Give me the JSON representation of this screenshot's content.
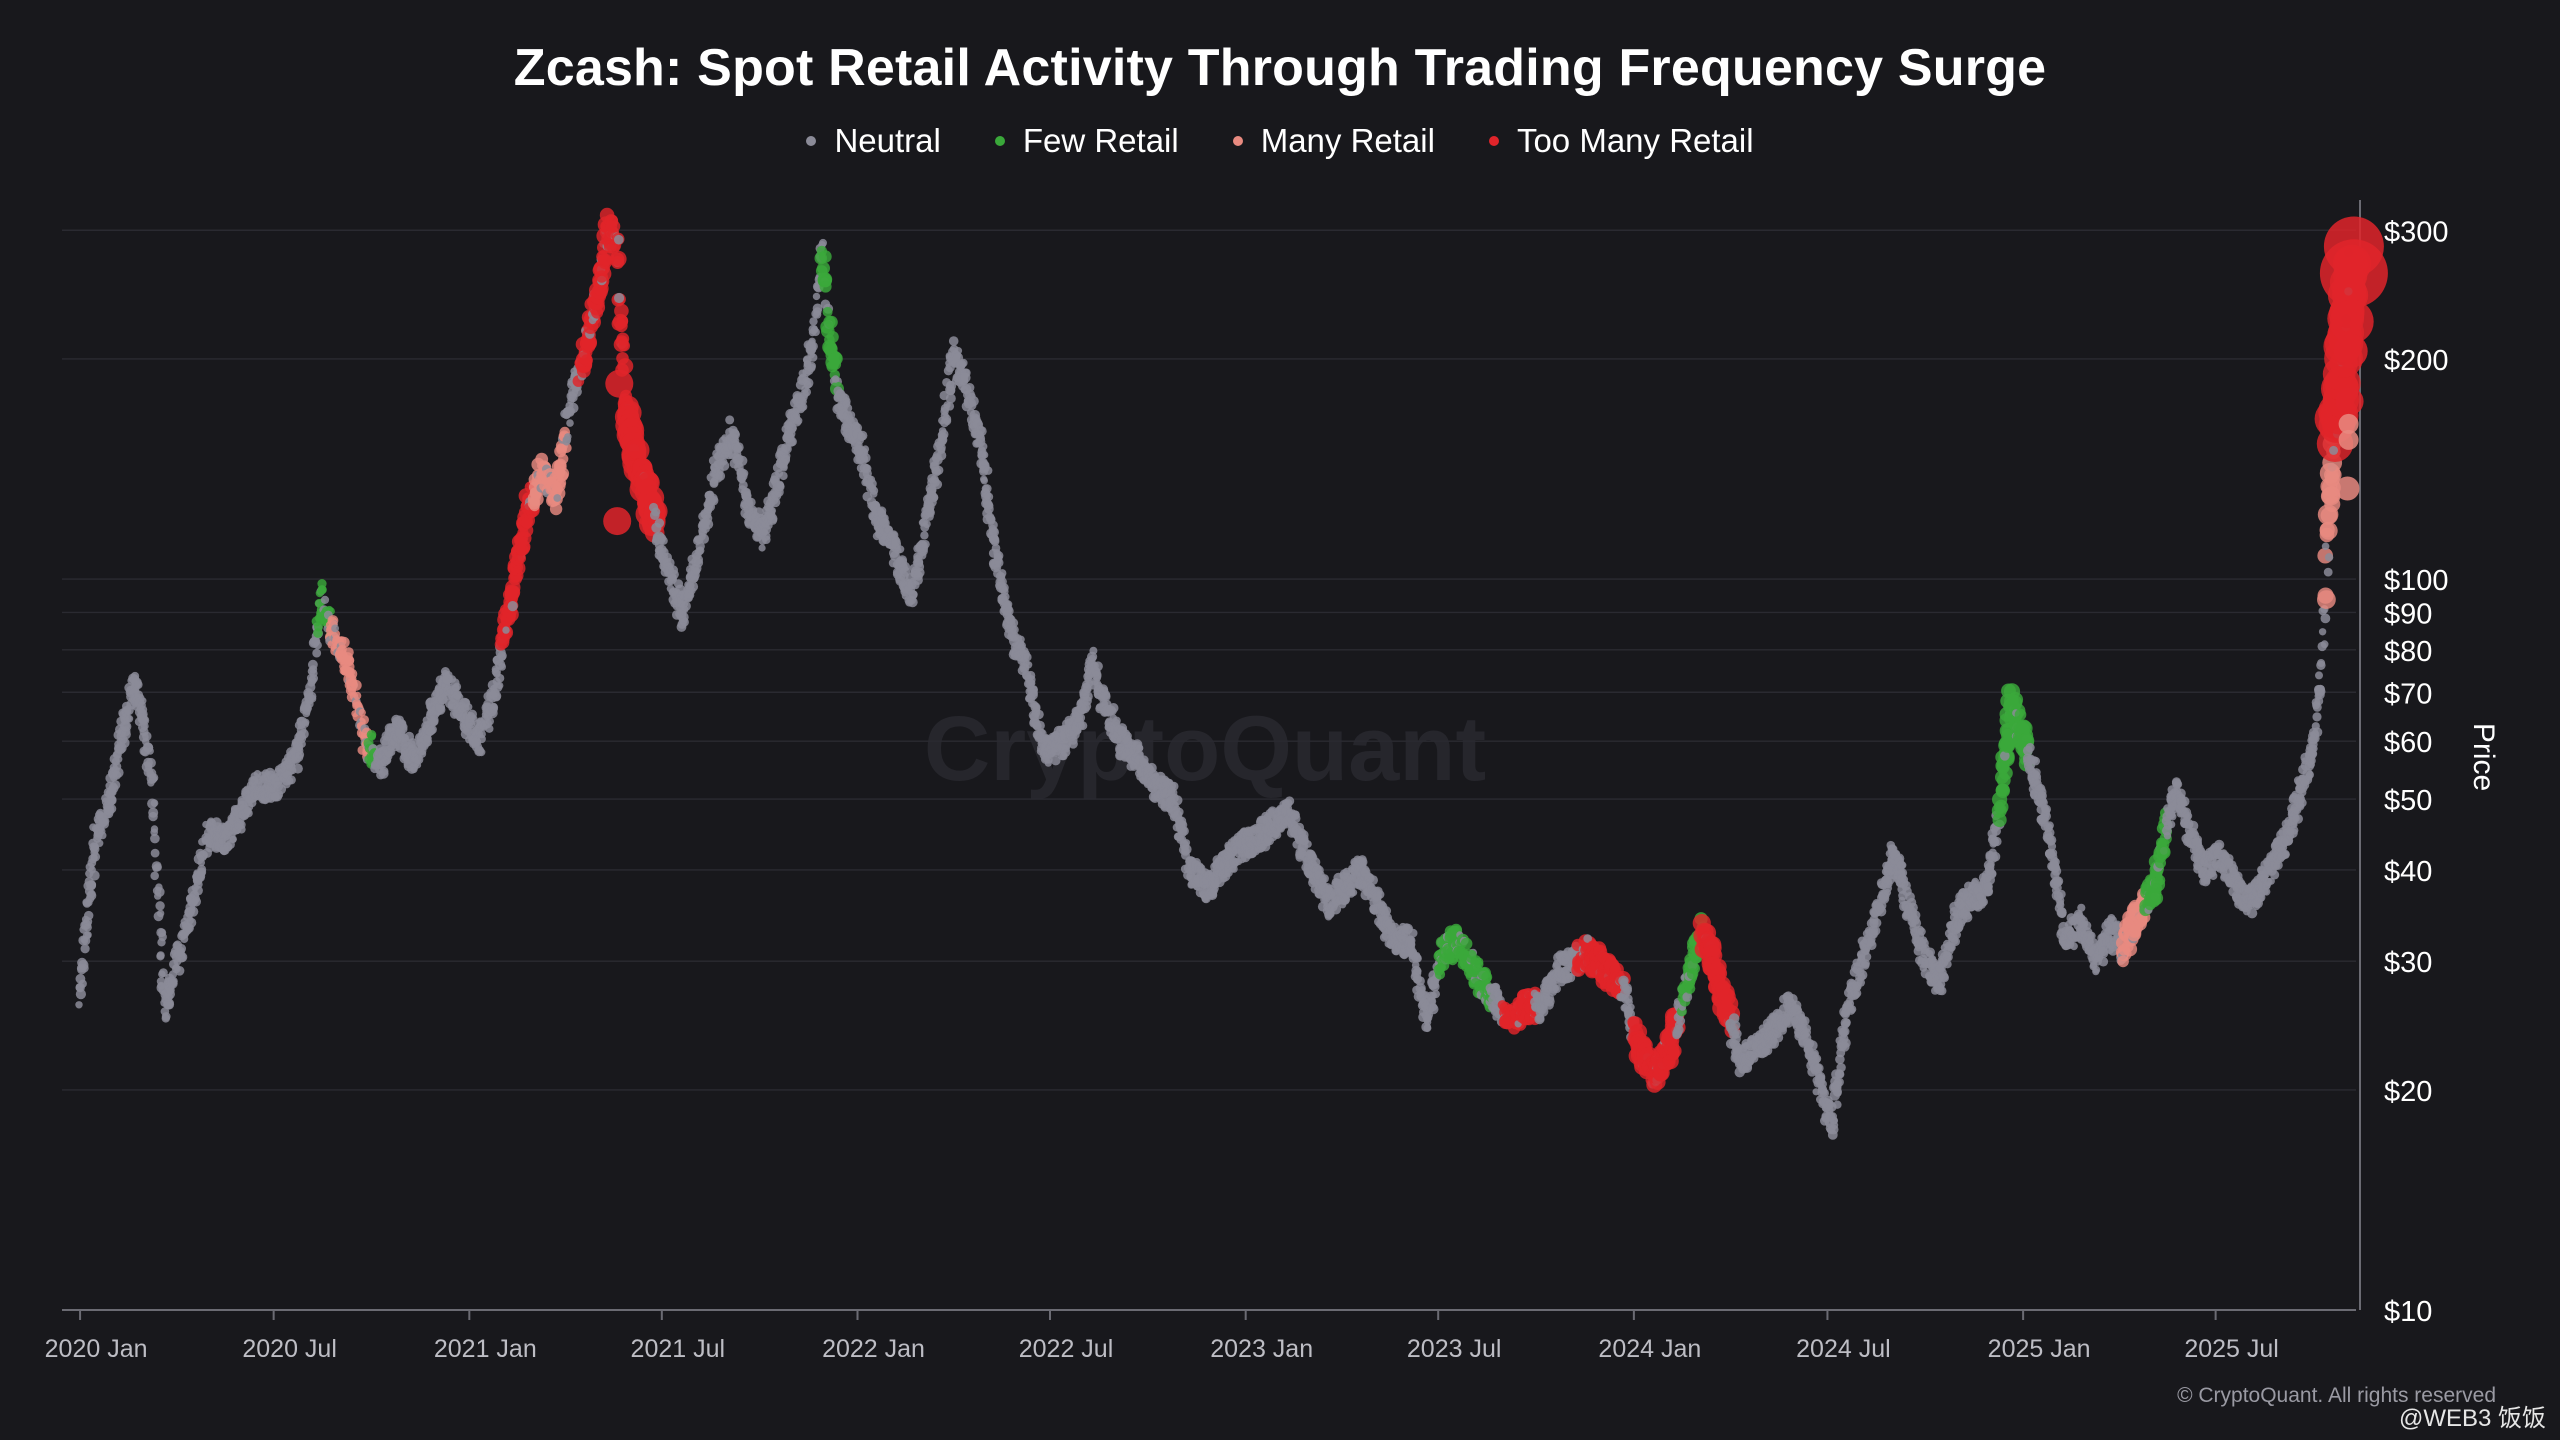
{
  "colors": {
    "background": "#18181c",
    "grid": "#2a2a31",
    "axis": "#6b6b73",
    "neutral": "#8b8b98",
    "few_retail": "#3aa83a",
    "many_retail": "#e88a80",
    "too_many_retail": "#e0242a"
  },
  "watermark": "CryptoQuant",
  "copyright": "© CryptoQuant. All rights reserved",
  "social_tag": "@WEB3 饭饭",
  "chart_data": {
    "type": "scatter",
    "title": "Zcash: Spot Retail Activity Through Trading Frequency Surge",
    "ylabel": "Price",
    "xlabel": "",
    "y_scale": "log",
    "ylim": [
      10,
      330
    ],
    "xlim": [
      "2019-12-15",
      "2025-11-10"
    ],
    "grid": true,
    "legend_position": "top-center",
    "x_ticks": [
      "2020 Jan",
      "2020 Jul",
      "2021 Jan",
      "2021 Jul",
      "2022 Jan",
      "2022 Jul",
      "2023 Jan",
      "2023 Jul",
      "2024 Jan",
      "2024 Jul",
      "2025 Jan",
      "2025 Jul"
    ],
    "x_tick_dates": [
      "2020-01-01",
      "2020-07-01",
      "2021-01-01",
      "2021-07-01",
      "2022-01-01",
      "2022-07-01",
      "2023-01-01",
      "2023-07-01",
      "2024-01-01",
      "2024-07-01",
      "2025-01-01",
      "2025-07-01"
    ],
    "y_ticks": [
      {
        "value": 10,
        "label": "$10"
      },
      {
        "value": 20,
        "label": "$20"
      },
      {
        "value": 30,
        "label": "$30"
      },
      {
        "value": 40,
        "label": "$40"
      },
      {
        "value": 50,
        "label": "$50"
      },
      {
        "value": 60,
        "label": "$60"
      },
      {
        "value": 70,
        "label": "$70"
      },
      {
        "value": 80,
        "label": "$80"
      },
      {
        "value": 90,
        "label": "$90"
      },
      {
        "value": 100,
        "label": "$100"
      },
      {
        "value": 200,
        "label": "$200"
      },
      {
        "value": 300,
        "label": "$300"
      }
    ],
    "legend": [
      {
        "key": "neutral",
        "label": "Neutral"
      },
      {
        "key": "few_retail",
        "label": "Few Retail"
      },
      {
        "key": "many_retail",
        "label": "Many Retail"
      },
      {
        "key": "too_many_retail",
        "label": "Too Many Retail"
      }
    ],
    "price_path": [
      [
        "2020-01-01",
        27
      ],
      [
        "2020-01-15",
        44
      ],
      [
        "2020-02-01",
        52
      ],
      [
        "2020-02-10",
        62
      ],
      [
        "2020-02-20",
        72
      ],
      [
        "2020-03-01",
        64
      ],
      [
        "2020-03-10",
        50
      ],
      [
        "2020-03-20",
        26
      ],
      [
        "2020-04-01",
        30
      ],
      [
        "2020-04-15",
        36
      ],
      [
        "2020-05-01",
        45
      ],
      [
        "2020-05-15",
        44
      ],
      [
        "2020-06-01",
        48
      ],
      [
        "2020-06-15",
        52
      ],
      [
        "2020-07-01",
        52
      ],
      [
        "2020-07-20",
        56
      ],
      [
        "2020-08-05",
        70
      ],
      [
        "2020-08-15",
        95
      ],
      [
        "2020-08-25",
        84
      ],
      [
        "2020-09-10",
        76
      ],
      [
        "2020-09-25",
        60
      ],
      [
        "2020-10-10",
        56
      ],
      [
        "2020-10-25",
        63
      ],
      [
        "2020-11-10",
        56
      ],
      [
        "2020-11-25",
        64
      ],
      [
        "2020-12-10",
        72
      ],
      [
        "2020-12-25",
        66
      ],
      [
        "2021-01-10",
        60
      ],
      [
        "2021-01-25",
        70
      ],
      [
        "2021-02-05",
        88
      ],
      [
        "2021-02-15",
        105
      ],
      [
        "2021-02-25",
        125
      ],
      [
        "2021-03-10",
        140
      ],
      [
        "2021-03-25",
        130
      ],
      [
        "2021-04-05",
        175
      ],
      [
        "2021-04-20",
        205
      ],
      [
        "2021-05-05",
        260
      ],
      [
        "2021-05-12",
        305
      ],
      [
        "2021-05-20",
        280
      ],
      [
        "2021-05-28",
        170
      ],
      [
        "2021-06-10",
        140
      ],
      [
        "2021-06-25",
        120
      ],
      [
        "2021-07-10",
        100
      ],
      [
        "2021-07-20",
        90
      ],
      [
        "2021-08-05",
        110
      ],
      [
        "2021-08-20",
        140
      ],
      [
        "2021-09-05",
        160
      ],
      [
        "2021-09-20",
        125
      ],
      [
        "2021-10-05",
        115
      ],
      [
        "2021-10-20",
        140
      ],
      [
        "2021-11-01",
        165
      ],
      [
        "2021-11-10",
        180
      ],
      [
        "2021-11-20",
        210
      ],
      [
        "2021-11-28",
        285
      ],
      [
        "2021-12-05",
        220
      ],
      [
        "2021-12-15",
        175
      ],
      [
        "2022-01-05",
        150
      ],
      [
        "2022-01-20",
        120
      ],
      [
        "2022-02-05",
        110
      ],
      [
        "2022-02-20",
        95
      ],
      [
        "2022-03-05",
        118
      ],
      [
        "2022-03-20",
        150
      ],
      [
        "2022-04-01",
        205
      ],
      [
        "2022-04-15",
        180
      ],
      [
        "2022-04-28",
        150
      ],
      [
        "2022-05-10",
        110
      ],
      [
        "2022-05-25",
        85
      ],
      [
        "2022-06-10",
        75
      ],
      [
        "2022-06-25",
        58
      ],
      [
        "2022-07-15",
        60
      ],
      [
        "2022-08-01",
        66
      ],
      [
        "2022-08-10",
        78
      ],
      [
        "2022-08-20",
        68
      ],
      [
        "2022-09-05",
        60
      ],
      [
        "2022-09-20",
        57
      ],
      [
        "2022-10-10",
        52
      ],
      [
        "2022-10-25",
        50
      ],
      [
        "2022-11-10",
        40
      ],
      [
        "2022-11-25",
        38
      ],
      [
        "2022-12-10",
        40
      ],
      [
        "2022-12-25",
        43
      ],
      [
        "2023-01-10",
        44
      ],
      [
        "2023-01-25",
        46
      ],
      [
        "2023-02-10",
        48
      ],
      [
        "2023-02-20",
        44
      ],
      [
        "2023-03-05",
        40
      ],
      [
        "2023-03-20",
        36
      ],
      [
        "2023-04-05",
        38
      ],
      [
        "2023-04-20",
        40
      ],
      [
        "2023-05-05",
        36
      ],
      [
        "2023-05-20",
        32
      ],
      [
        "2023-06-05",
        32
      ],
      [
        "2023-06-20",
        25
      ],
      [
        "2023-07-05",
        31
      ],
      [
        "2023-07-20",
        32
      ],
      [
        "2023-08-05",
        29
      ],
      [
        "2023-08-20",
        27
      ],
      [
        "2023-09-05",
        25
      ],
      [
        "2023-09-20",
        26
      ],
      [
        "2023-10-05",
        26
      ],
      [
        "2023-10-20",
        29
      ],
      [
        "2023-11-05",
        30
      ],
      [
        "2023-11-20",
        31
      ],
      [
        "2023-12-05",
        29
      ],
      [
        "2023-12-20",
        28
      ],
      [
        "2024-01-05",
        23
      ],
      [
        "2024-01-20",
        21
      ],
      [
        "2024-02-05",
        23
      ],
      [
        "2024-02-20",
        28
      ],
      [
        "2024-03-05",
        33
      ],
      [
        "2024-03-15",
        30
      ],
      [
        "2024-03-25",
        27
      ],
      [
        "2024-04-10",
        22
      ],
      [
        "2024-04-25",
        23
      ],
      [
        "2024-05-10",
        24
      ],
      [
        "2024-05-25",
        26
      ],
      [
        "2024-06-10",
        24
      ],
      [
        "2024-06-25",
        20
      ],
      [
        "2024-07-05",
        18
      ],
      [
        "2024-07-20",
        26
      ],
      [
        "2024-08-05",
        31
      ],
      [
        "2024-08-20",
        36
      ],
      [
        "2024-09-01",
        42
      ],
      [
        "2024-09-15",
        36
      ],
      [
        "2024-09-28",
        31
      ],
      [
        "2024-10-15",
        28
      ],
      [
        "2024-11-01",
        35
      ],
      [
        "2024-11-15",
        37
      ],
      [
        "2024-11-28",
        38
      ],
      [
        "2024-12-10",
        48
      ],
      [
        "2024-12-20",
        68
      ],
      [
        "2025-01-01",
        60
      ],
      [
        "2025-01-15",
        52
      ],
      [
        "2025-01-25",
        45
      ],
      [
        "2025-02-10",
        32
      ],
      [
        "2025-02-25",
        34
      ],
      [
        "2025-03-10",
        30
      ],
      [
        "2025-03-25",
        33
      ],
      [
        "2025-04-05",
        31
      ],
      [
        "2025-04-15",
        34
      ],
      [
        "2025-04-25",
        36
      ],
      [
        "2025-05-05",
        38
      ],
      [
        "2025-05-15",
        46
      ],
      [
        "2025-05-25",
        52
      ],
      [
        "2025-06-05",
        46
      ],
      [
        "2025-06-20",
        40
      ],
      [
        "2025-07-05",
        42
      ],
      [
        "2025-07-20",
        38
      ],
      [
        "2025-08-05",
        36
      ],
      [
        "2025-08-20",
        40
      ],
      [
        "2025-09-05",
        44
      ],
      [
        "2025-09-20",
        52
      ],
      [
        "2025-10-01",
        60
      ],
      [
        "2025-10-08",
        72
      ],
      [
        "2025-10-15",
        120
      ],
      [
        "2025-10-20",
        150
      ],
      [
        "2025-10-25",
        175
      ],
      [
        "2025-10-30",
        210
      ],
      [
        "2025-11-05",
        270
      ]
    ],
    "highlights": [
      {
        "class": "few_retail",
        "start": "2020-08-12",
        "end": "2020-08-22",
        "scale": 1.0
      },
      {
        "class": "many_retail",
        "start": "2020-08-22",
        "end": "2020-09-15",
        "scale": 1.1
      },
      {
        "class": "many_retail",
        "start": "2020-09-15",
        "end": "2020-09-28",
        "scale": 1.0
      },
      {
        "class": "few_retail",
        "start": "2020-09-28",
        "end": "2020-10-05",
        "scale": 1.0
      },
      {
        "class": "too_many_retail",
        "start": "2021-02-01",
        "end": "2021-03-01",
        "scale": 1.5
      },
      {
        "class": "many_retail",
        "start": "2021-03-01",
        "end": "2021-04-01",
        "scale": 1.3
      },
      {
        "class": "too_many_retail",
        "start": "2021-04-15",
        "end": "2021-05-28",
        "scale": 1.6
      },
      {
        "class": "too_many_retail",
        "start": "2021-05-28",
        "end": "2021-06-25",
        "scale": 2.4
      },
      {
        "class": "few_retail",
        "start": "2021-11-28",
        "end": "2021-12-12",
        "scale": 1.4
      },
      {
        "class": "few_retail",
        "start": "2023-07-01",
        "end": "2023-08-20",
        "scale": 1.2
      },
      {
        "class": "too_many_retail",
        "start": "2023-09-01",
        "end": "2023-09-30",
        "scale": 1.3
      },
      {
        "class": "too_many_retail",
        "start": "2023-11-10",
        "end": "2023-12-20",
        "scale": 1.5
      },
      {
        "class": "too_many_retail",
        "start": "2024-01-01",
        "end": "2024-02-10",
        "scale": 1.7
      },
      {
        "class": "few_retail",
        "start": "2024-02-15",
        "end": "2024-03-05",
        "scale": 1.3
      },
      {
        "class": "too_many_retail",
        "start": "2024-03-05",
        "end": "2024-04-01",
        "scale": 1.8
      },
      {
        "class": "few_retail",
        "start": "2024-12-10",
        "end": "2025-01-05",
        "scale": 1.6
      },
      {
        "class": "many_retail",
        "start": "2025-04-05",
        "end": "2025-04-25",
        "scale": 1.5
      },
      {
        "class": "few_retail",
        "start": "2025-04-25",
        "end": "2025-05-15",
        "scale": 1.4
      },
      {
        "class": "many_retail",
        "start": "2025-10-12",
        "end": "2025-10-20",
        "scale": 2.0
      },
      {
        "class": "too_many_retail",
        "start": "2025-10-20",
        "end": "2025-11-10",
        "scale": 3.8
      }
    ],
    "big_bubbles": [
      {
        "date": "2025-11-08",
        "price": 285,
        "class": "too_many_retail",
        "size": 30
      },
      {
        "date": "2025-11-08",
        "price": 262,
        "class": "too_many_retail",
        "size": 34
      },
      {
        "date": "2025-11-06",
        "price": 225,
        "class": "too_many_retail",
        "size": 22
      },
      {
        "date": "2025-11-05",
        "price": 205,
        "class": "too_many_retail",
        "size": 17
      },
      {
        "date": "2025-11-04",
        "price": 175,
        "class": "too_many_retail",
        "size": 14
      },
      {
        "date": "2025-11-03",
        "price": 163,
        "class": "many_retail",
        "size": 10
      },
      {
        "date": "2025-11-03",
        "price": 155,
        "class": "many_retail",
        "size": 10
      },
      {
        "date": "2025-11-02",
        "price": 133,
        "class": "many_retail",
        "size": 12
      },
      {
        "date": "2021-05-22",
        "price": 185,
        "class": "too_many_retail",
        "size": 14
      },
      {
        "date": "2021-05-20",
        "price": 120,
        "class": "too_many_retail",
        "size": 14
      }
    ]
  }
}
